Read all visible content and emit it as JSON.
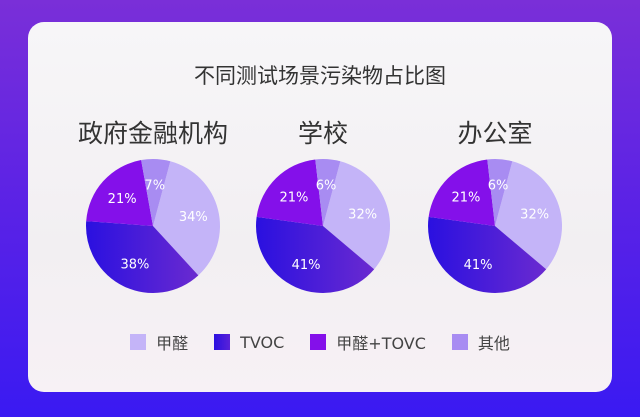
{
  "chart_data": {
    "type": "pie",
    "title": "不同测试场景污染物占比图",
    "categories": [
      "甲醛",
      "TVOC",
      "甲醛+TOVC",
      "其他"
    ],
    "colors": [
      "#c4b4f8",
      "#3a16e0",
      "#8410ea",
      "#a88cf2"
    ],
    "legend_position": "bottom",
    "pies": [
      {
        "title": "政府金融机构",
        "values": [
          34,
          38,
          21,
          7
        ]
      },
      {
        "title": "学校",
        "values": [
          32,
          41,
          21,
          6
        ]
      },
      {
        "title": "办公室",
        "values": [
          32,
          41,
          21,
          6
        ]
      }
    ]
  }
}
